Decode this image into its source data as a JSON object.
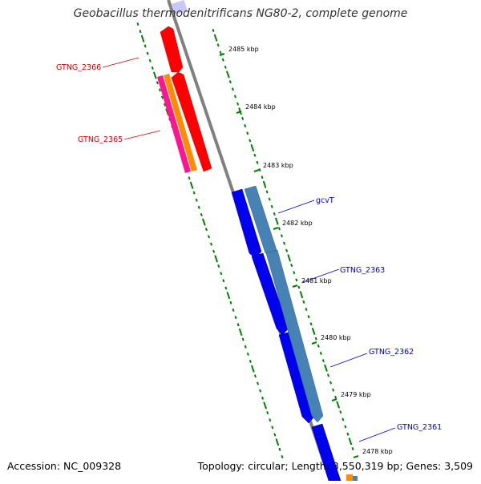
{
  "title": "Geobacillus thermodenitrificans NG80-2, complete genome",
  "footer": {
    "accession": "Accession: NC_009328",
    "topology": "Topology: circular; Length: 3,550,319 bp; Genes: 3,509"
  },
  "kbp_labels": [
    "2485 kbp",
    "2484 kbp",
    "2483 kbp",
    "2482 kbp",
    "2481 kbp",
    "2480 kbp",
    "2479 kbp",
    "2478 kbp"
  ],
  "genes": [
    {
      "name": "GTNG_2366",
      "strand": "reverse",
      "color": "#ff0000",
      "labeled": true
    },
    {
      "name": "GTNG_2365",
      "strand": "reverse",
      "color": "#ff0000",
      "labeled": true
    },
    {
      "name": "gcvT",
      "strand": "forward",
      "color": "#0000ee",
      "labeled": true
    },
    {
      "name": "GTNG_2363",
      "strand": "forward",
      "color": "#0000ee",
      "labeled": true
    },
    {
      "name": "GTNG_2362",
      "strand": "forward",
      "color": "#0000ee",
      "labeled": true
    },
    {
      "name": "GTNG_2361",
      "strand": "forward",
      "color": "#0000ee",
      "labeled": true
    }
  ],
  "colors": {
    "forward_gene": "#0000ee",
    "reverse_gene": "#ff0000",
    "cds_pink": "#ff1493",
    "cds_orange": "#ff8c00",
    "forward_cds": "#4682b4",
    "backbone": "#808080",
    "gc_ticks": "#008000",
    "forward_label": "#0000cc",
    "reverse_label": "#cc0000"
  }
}
